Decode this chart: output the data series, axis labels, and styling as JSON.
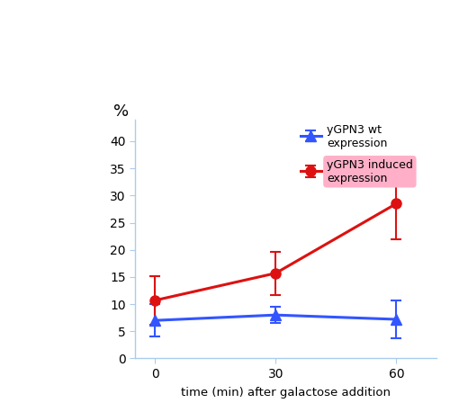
{
  "x": [
    0,
    30,
    60
  ],
  "blue_y": [
    7.0,
    8.0,
    7.2
  ],
  "blue_err": [
    3.0,
    1.5,
    3.5
  ],
  "red_y": [
    10.7,
    15.7,
    28.5
  ],
  "red_err": [
    4.5,
    4.0,
    6.5
  ],
  "blue_color": "#3355ff",
  "red_color": "#dd1111",
  "blue_label": "yGPN3 wt\nexpression",
  "red_label": "yGPN3 induced\nexpression",
  "xlabel": "time (min) after galactose addition",
  "ylabel": "%",
  "ylim": [
    0,
    44
  ],
  "yticks": [
    0,
    5,
    10,
    15,
    20,
    25,
    30,
    35,
    40
  ],
  "xlim": [
    -5,
    70
  ],
  "xticks": [
    0,
    30,
    60
  ],
  "background_color": "#ffffff",
  "linewidth": 2.2,
  "markersize": 8,
  "spine_color": "#aaccee",
  "pink_bg": "#ffb0c8"
}
